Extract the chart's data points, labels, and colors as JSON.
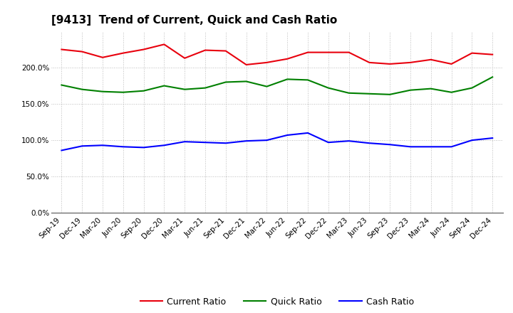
{
  "title": "[9413]  Trend of Current, Quick and Cash Ratio",
  "labels": [
    "Sep-19",
    "Dec-19",
    "Mar-20",
    "Jun-20",
    "Sep-20",
    "Dec-20",
    "Mar-21",
    "Jun-21",
    "Sep-21",
    "Dec-21",
    "Mar-22",
    "Jun-22",
    "Sep-22",
    "Dec-22",
    "Mar-23",
    "Jun-23",
    "Sep-23",
    "Dec-23",
    "Mar-24",
    "Jun-24",
    "Sep-24",
    "Dec-24"
  ],
  "current_ratio": [
    225,
    222,
    214,
    220,
    225,
    232,
    213,
    224,
    223,
    204,
    207,
    212,
    221,
    221,
    221,
    207,
    205,
    207,
    211,
    205,
    220,
    218
  ],
  "quick_ratio": [
    176,
    170,
    167,
    166,
    168,
    175,
    170,
    172,
    180,
    181,
    174,
    184,
    183,
    172,
    165,
    164,
    163,
    169,
    171,
    166,
    172,
    187
  ],
  "cash_ratio": [
    86,
    92,
    93,
    91,
    90,
    93,
    98,
    97,
    96,
    99,
    100,
    107,
    110,
    97,
    99,
    96,
    94,
    91,
    91,
    91,
    100,
    103
  ],
  "current_color": "#e8000d",
  "quick_color": "#008000",
  "cash_color": "#0000ff",
  "ylim": [
    0,
    250
  ],
  "yticks": [
    0,
    50,
    100,
    150,
    200
  ],
  "bg_color": "#ffffff",
  "grid_color": "#aaaaaa",
  "legend_labels": [
    "Current Ratio",
    "Quick Ratio",
    "Cash Ratio"
  ]
}
